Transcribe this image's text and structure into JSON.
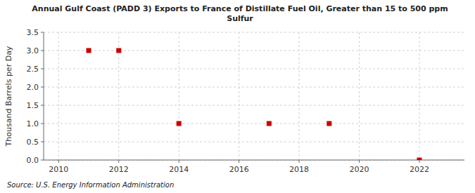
{
  "chart_data": {
    "type": "scatter",
    "title": "Annual Gulf Coast (PADD 3) Exports to France of Distillate Fuel Oil, Greater than 15 to 500 ppm\nSulfur",
    "y_label": "Thousand Barrels per Day",
    "annotations": [
      "Source: U.S. Energy Information Administration"
    ],
    "x": [
      2011,
      2012,
      2014,
      2017,
      2019,
      2022
    ],
    "values": [
      3.0,
      3.0,
      1.0,
      1.0,
      1.0,
      0.0
    ],
    "color": "#cc0000",
    "marker": "square",
    "xlim": [
      2009.5,
      2023.5
    ],
    "ylim": [
      0.0,
      3.5
    ],
    "xticks": [
      2010,
      2012,
      2014,
      2016,
      2018,
      2020,
      2022
    ],
    "yticks": [
      {
        "value": 0.0,
        "label": "0.0"
      },
      0.5,
      {
        "value": 1.0,
        "label": "1.0"
      },
      1.5,
      {
        "value": 2.0,
        "label": "2.0"
      },
      2.5,
      {
        "value": 3.0,
        "label": "3.0"
      },
      3.5
    ],
    "grid": true
  }
}
